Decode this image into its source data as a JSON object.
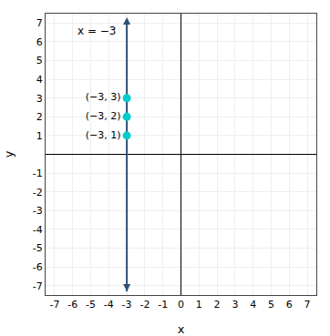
{
  "chart_data": {
    "type": "scatter",
    "xlabel": "x",
    "ylabel": "y",
    "xlim": [
      -7.5,
      7.5
    ],
    "ylim": [
      -7.5,
      7.5
    ],
    "xticks": [
      -7,
      -6,
      -5,
      -4,
      -3,
      -2,
      -1,
      0,
      1,
      2,
      3,
      4,
      5,
      6,
      7
    ],
    "yticks": [
      -7,
      -6,
      -5,
      -4,
      -3,
      -2,
      -1,
      1,
      2,
      3,
      4,
      5,
      6,
      7
    ],
    "grid": true,
    "series": [
      {
        "type": "line",
        "color": "#2d5073",
        "marker": "arrow",
        "label": "x = −3",
        "x": [
          -3,
          -3
        ],
        "values": [
          -7.3,
          7.3
        ]
      },
      {
        "type": "scatter",
        "color": "#00cccc",
        "x": [
          -3,
          -3,
          -3
        ],
        "values": [
          1,
          2,
          3
        ],
        "labels": [
          "(−3, 1)",
          "(−3, 2)",
          "(−3, 3)"
        ]
      }
    ]
  }
}
